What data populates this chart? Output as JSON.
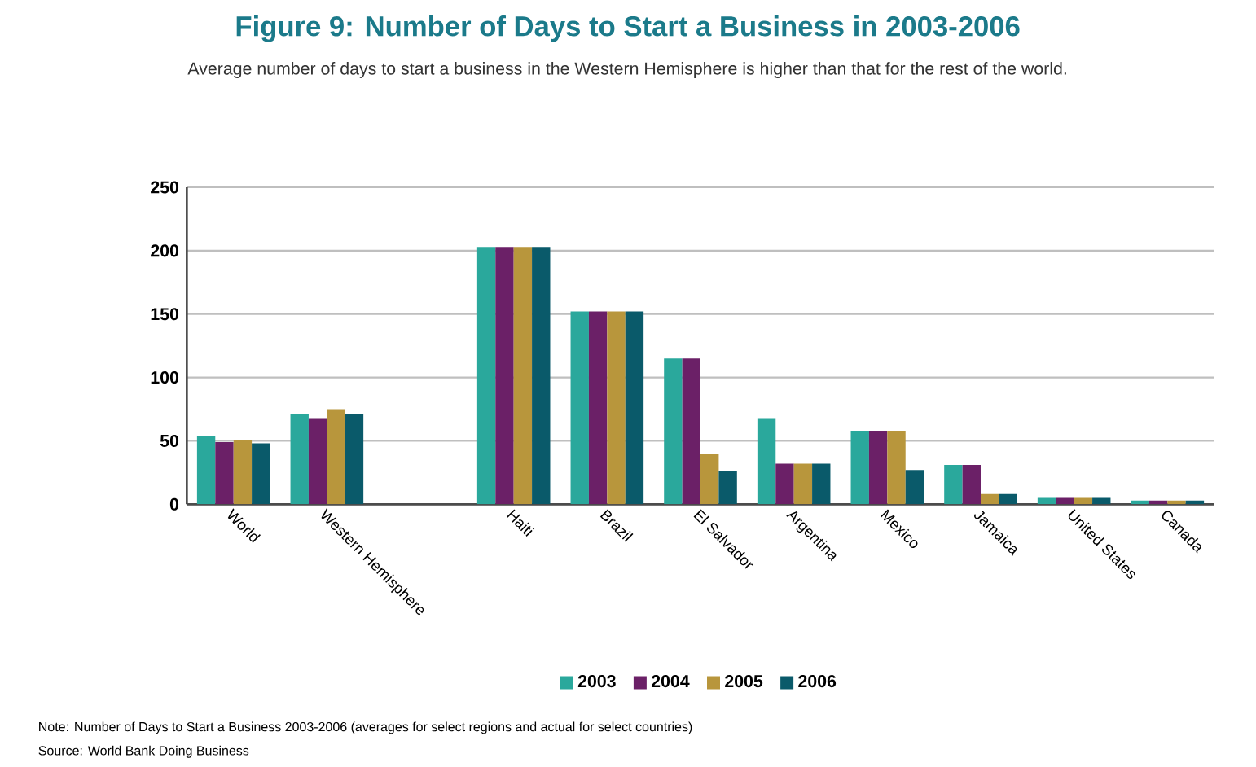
{
  "chart_data": {
    "type": "bar",
    "title": "Figure 9: Number of Days to Start a Business in 2003-2006",
    "subtitle": "Average number of days to start a business in the Western Hemisphere is higher than that for the rest of the world.",
    "categories": [
      "World",
      "Western Hemisphere",
      null,
      "Haiti",
      "Brazil",
      "El Salvador",
      "Argentina",
      "Mexico",
      "Jamaica",
      "United States",
      "Canada"
    ],
    "series": [
      {
        "name": "2003",
        "color": "#2aa89c",
        "values": [
          54,
          71,
          null,
          203,
          152,
          115,
          68,
          58,
          31,
          5,
          3
        ]
      },
      {
        "name": "2004",
        "color": "#6b2067",
        "values": [
          49,
          68,
          null,
          203,
          152,
          115,
          32,
          58,
          31,
          5,
          3
        ]
      },
      {
        "name": "2005",
        "color": "#b8963c",
        "values": [
          51,
          75,
          null,
          203,
          152,
          40,
          32,
          58,
          8,
          5,
          3
        ]
      },
      {
        "name": "2006",
        "color": "#0a5a6a",
        "values": [
          48,
          71,
          null,
          203,
          152,
          26,
          32,
          27,
          8,
          5,
          3
        ]
      }
    ],
    "ylim": [
      0,
      250
    ],
    "yticks": [
      0,
      50,
      100,
      150,
      200,
      250
    ],
    "grid": "y",
    "legend": "bottom",
    "annotations": [
      "Note: Number of Days to Start a Business 2003-2006 (averages for select regions and actual for select countries)",
      "Source: World Bank Doing Business"
    ]
  }
}
